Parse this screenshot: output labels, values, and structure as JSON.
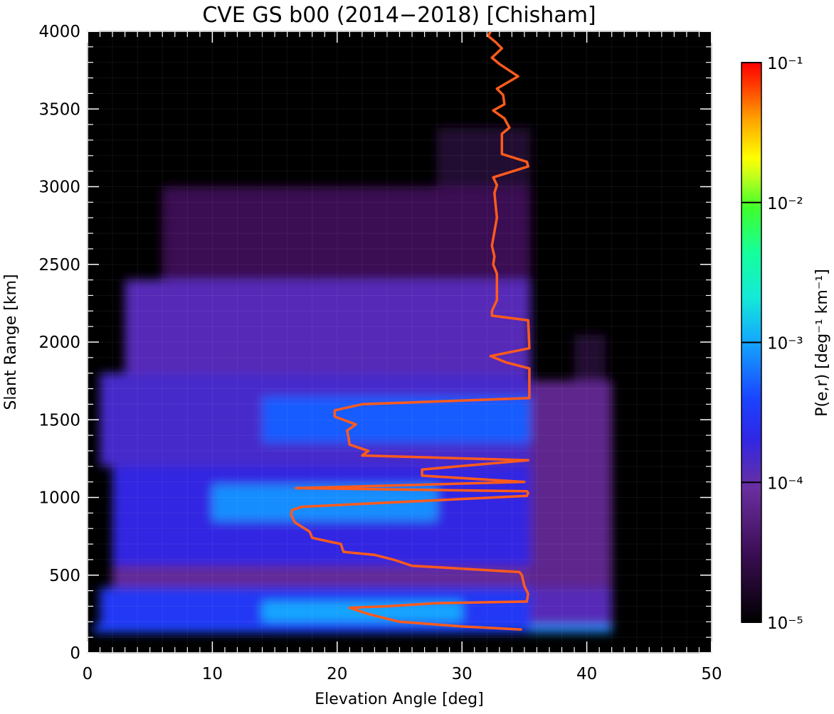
{
  "chart_data": {
    "type": "heatmap",
    "title": "CVE GS b00 (2014−2018) [Chisham]",
    "xlabel": "Elevation Angle [deg]",
    "ylabel": "Slant Range [km]",
    "xlim": [
      0,
      50
    ],
    "ylim": [
      0,
      4000
    ],
    "x_ticks": [
      "0",
      "10",
      "20",
      "30",
      "40",
      "50"
    ],
    "y_ticks": [
      "0",
      "500",
      "1000",
      "1500",
      "2000",
      "2500",
      "3000",
      "3500",
      "4000"
    ],
    "colorbar": {
      "label": "P(e,r) [deg⁻¹ km⁻¹]",
      "scale": "log",
      "range": [
        1e-05,
        0.1
      ],
      "tick_values": [
        0.1,
        0.01,
        0.001,
        0.0001,
        1e-05
      ],
      "tick_labels": [
        "10⁻¹",
        "10⁻²",
        "10⁻³",
        "10⁻⁴",
        "10⁻⁵"
      ]
    },
    "grid": true,
    "heatmap_cells": [
      {
        "x": [
          0.5,
          35.5
        ],
        "y": [
          130,
          180
        ],
        "value": 0.0004
      },
      {
        "x": [
          35.5,
          42
        ],
        "y": [
          130,
          180
        ],
        "value": 0.0008
      },
      {
        "x": [
          1,
          35.5
        ],
        "y": [
          180,
          420
        ],
        "value": 0.0003
      },
      {
        "x": [
          35.5,
          42
        ],
        "y": [
          180,
          420
        ],
        "value": 0.00012
      },
      {
        "x": [
          14,
          30
        ],
        "y": [
          200,
          330
        ],
        "value": 0.001
      },
      {
        "x": [
          2,
          35.5
        ],
        "y": [
          420,
          560
        ],
        "value": 8e-05
      },
      {
        "x": [
          2,
          35.5
        ],
        "y": [
          560,
          1200
        ],
        "value": 0.0002
      },
      {
        "x": [
          35.5,
          42
        ],
        "y": [
          420,
          1750
        ],
        "value": 7e-05
      },
      {
        "x": [
          10,
          28
        ],
        "y": [
          850,
          1080
        ],
        "value": 0.0008
      },
      {
        "x": [
          1,
          35.5
        ],
        "y": [
          1200,
          1800
        ],
        "value": 0.00015
      },
      {
        "x": [
          14,
          35.5
        ],
        "y": [
          1350,
          1650
        ],
        "value": 0.0005
      },
      {
        "x": [
          3,
          35.5
        ],
        "y": [
          1800,
          2400
        ],
        "value": 0.00012
      },
      {
        "x": [
          6,
          35.5
        ],
        "y": [
          2400,
          3000
        ],
        "value": 3e-05
      },
      {
        "x": [
          28,
          35.5
        ],
        "y": [
          3000,
          3380
        ],
        "value": 2e-05
      },
      {
        "x": [
          39,
          41.5
        ],
        "y": [
          1750,
          2050
        ],
        "value": 2e-05
      }
    ],
    "series": [
      {
        "type": "line",
        "color": "#ff5b1c",
        "points": [
          [
            34.8,
            150
          ],
          [
            30,
            170
          ],
          [
            25,
            200
          ],
          [
            22.5,
            250
          ],
          [
            21,
            290
          ],
          [
            24,
            300
          ],
          [
            28,
            320
          ],
          [
            35.2,
            330
          ],
          [
            35.3,
            380
          ],
          [
            35,
            430
          ],
          [
            34.8,
            500
          ],
          [
            34.6,
            520
          ],
          [
            26,
            560
          ],
          [
            24.5,
            600
          ],
          [
            23,
            630
          ],
          [
            20.5,
            650
          ],
          [
            20.3,
            700
          ],
          [
            18,
            740
          ],
          [
            17.8,
            780
          ],
          [
            16.6,
            840
          ],
          [
            16.3,
            890
          ],
          [
            16.4,
            920
          ],
          [
            17.2,
            940
          ],
          [
            35.2,
            1010
          ],
          [
            35.3,
            1030
          ],
          [
            35.2,
            1040
          ],
          [
            16.7,
            1060
          ],
          [
            35,
            1100
          ],
          [
            26.8,
            1140
          ],
          [
            26.8,
            1180
          ],
          [
            35.3,
            1240
          ],
          [
            22,
            1270
          ],
          [
            22.5,
            1300
          ],
          [
            21,
            1340
          ],
          [
            20.9,
            1390
          ],
          [
            20.8,
            1430
          ],
          [
            21.5,
            1470
          ],
          [
            19.8,
            1520
          ],
          [
            19.8,
            1560
          ],
          [
            22,
            1600
          ],
          [
            35.4,
            1640
          ],
          [
            35.4,
            1830
          ],
          [
            33.5,
            1870
          ],
          [
            32.3,
            1910
          ],
          [
            35.4,
            1960
          ],
          [
            35.3,
            2140
          ],
          [
            32.4,
            2170
          ],
          [
            32.4,
            2200
          ],
          [
            32.8,
            2270
          ],
          [
            32.8,
            2440
          ],
          [
            32.5,
            2500
          ],
          [
            32.6,
            2550
          ],
          [
            32.4,
            2620
          ],
          [
            32.8,
            2800
          ],
          [
            32.6,
            2960
          ],
          [
            32.8,
            3010
          ],
          [
            32.5,
            3060
          ],
          [
            35.3,
            3130
          ],
          [
            35.2,
            3160
          ],
          [
            33.2,
            3210
          ],
          [
            33.2,
            3340
          ],
          [
            33.8,
            3380
          ],
          [
            33.4,
            3440
          ],
          [
            32.5,
            3490
          ],
          [
            33.4,
            3530
          ],
          [
            33.3,
            3590
          ],
          [
            32.8,
            3630
          ],
          [
            34.5,
            3710
          ],
          [
            33,
            3790
          ],
          [
            32.4,
            3830
          ],
          [
            33.2,
            3890
          ],
          [
            32.7,
            3930
          ],
          [
            32.1,
            3970
          ],
          [
            32.3,
            4000
          ]
        ]
      }
    ]
  }
}
